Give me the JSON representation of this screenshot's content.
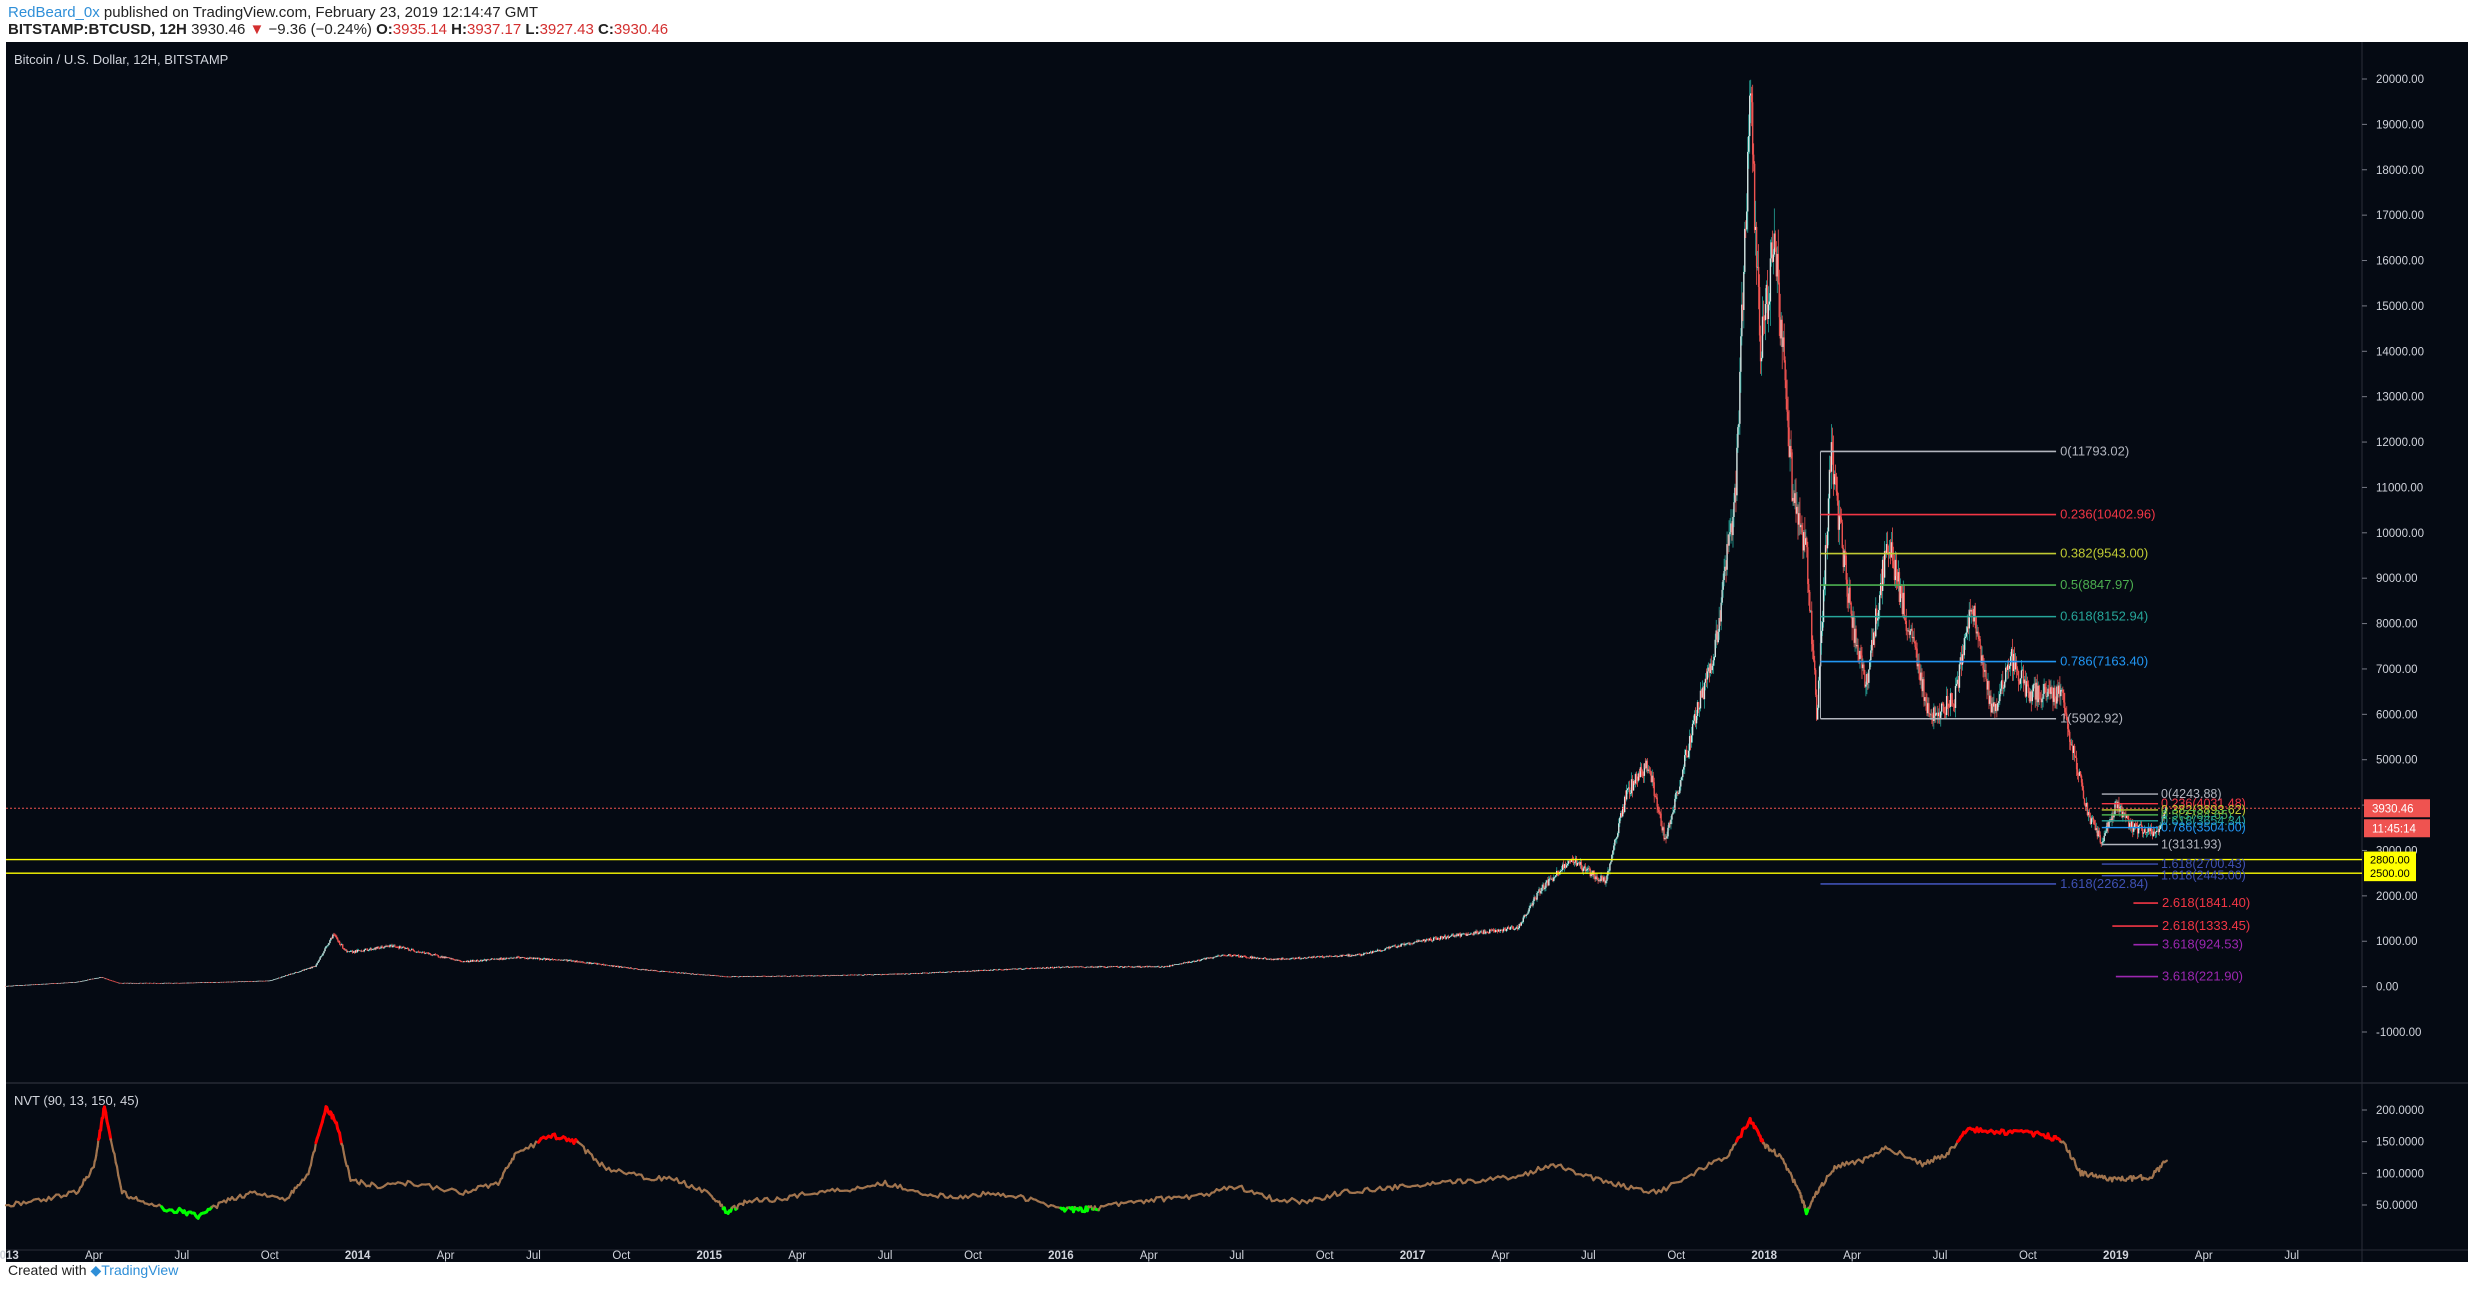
{
  "header": {
    "author": "RedBeard_0x",
    "published": " published on TradingView.com, February 23, 2019 12:14:47 GMT",
    "symbol": "BITSTAMP:BTCUSD, 12H",
    "last": "3930.46",
    "change": "−9.36 (−0.24%)",
    "o_label": "O:",
    "o_value": "3935.14",
    "h_label": "H:",
    "h_value": "3937.17",
    "l_label": "L:",
    "l_value": "3927.43",
    "c_label": "C:",
    "c_value": "3930.46",
    "down_arrow": "▼"
  },
  "footer": {
    "created_with": "Created with",
    "brand": "TradingView"
  },
  "colors": {
    "background": "#050a13",
    "up": "#26a69a",
    "down": "#ef5350",
    "price_line": "#ef5350",
    "support": "#ffff00",
    "nvt_line": "#a1744e",
    "nvt_high": "#ff0000",
    "nvt_low": "#00ff00"
  },
  "chart_data": [
    {
      "type": "candlestick",
      "title": "Bitcoin / U.S. Dollar, 12H, BITSTAMP",
      "ylim": [
        -1000,
        20500
      ],
      "y_ticks": [
        "20000.00",
        "19000.00",
        "18000.00",
        "17000.00",
        "16000.00",
        "15000.00",
        "14000.00",
        "13000.00",
        "12000.00",
        "11000.00",
        "10000.00",
        "9000.00",
        "8000.00",
        "7000.00",
        "6000.00",
        "5000.00",
        "4000.00",
        "3000.00",
        "2000.00",
        "1000.00",
        "0.00",
        "-1000.00"
      ],
      "x_ticks": [
        "2013",
        "Apr",
        "Jul",
        "Oct",
        "2014",
        "Apr",
        "Jul",
        "Oct",
        "2015",
        "Apr",
        "Jul",
        "Oct",
        "2016",
        "Apr",
        "Jul",
        "Oct",
        "2017",
        "Apr",
        "Jul",
        "Oct",
        "2018",
        "Apr",
        "Jul",
        "Oct",
        "2019",
        "Apr",
        "Jul"
      ],
      "price_path": [
        {
          "t": 2013.0,
          "v": 13
        },
        {
          "t": 2013.2,
          "v": 100
        },
        {
          "t": 2013.27,
          "v": 210
        },
        {
          "t": 2013.32,
          "v": 80
        },
        {
          "t": 2013.5,
          "v": 80
        },
        {
          "t": 2013.75,
          "v": 130
        },
        {
          "t": 2013.88,
          "v": 450
        },
        {
          "t": 2013.93,
          "v": 1150
        },
        {
          "t": 2013.97,
          "v": 750
        },
        {
          "t": 2014.1,
          "v": 900
        },
        {
          "t": 2014.3,
          "v": 550
        },
        {
          "t": 2014.45,
          "v": 640
        },
        {
          "t": 2014.6,
          "v": 580
        },
        {
          "t": 2014.8,
          "v": 380
        },
        {
          "t": 2015.05,
          "v": 220
        },
        {
          "t": 2015.3,
          "v": 240
        },
        {
          "t": 2015.55,
          "v": 280
        },
        {
          "t": 2015.85,
          "v": 380
        },
        {
          "t": 2016.0,
          "v": 430
        },
        {
          "t": 2016.3,
          "v": 440
        },
        {
          "t": 2016.47,
          "v": 700
        },
        {
          "t": 2016.6,
          "v": 600
        },
        {
          "t": 2016.85,
          "v": 700
        },
        {
          "t": 2017.0,
          "v": 970
        },
        {
          "t": 2017.1,
          "v": 1100
        },
        {
          "t": 2017.2,
          "v": 1200
        },
        {
          "t": 2017.3,
          "v": 1300
        },
        {
          "t": 2017.36,
          "v": 2100
        },
        {
          "t": 2017.45,
          "v": 2800
        },
        {
          "t": 2017.55,
          "v": 2300
        },
        {
          "t": 2017.61,
          "v": 4300
        },
        {
          "t": 2017.67,
          "v": 4900
        },
        {
          "t": 2017.72,
          "v": 3200
        },
        {
          "t": 2017.8,
          "v": 5800
        },
        {
          "t": 2017.86,
          "v": 7400
        },
        {
          "t": 2017.92,
          "v": 11000
        },
        {
          "t": 2017.96,
          "v": 19700
        },
        {
          "t": 2017.99,
          "v": 14000
        },
        {
          "t": 2018.03,
          "v": 16500
        },
        {
          "t": 2018.08,
          "v": 11000
        },
        {
          "t": 2018.12,
          "v": 9500
        },
        {
          "t": 2018.15,
          "v": 6000
        },
        {
          "t": 2018.19,
          "v": 11700
        },
        {
          "t": 2018.25,
          "v": 8000
        },
        {
          "t": 2018.29,
          "v": 6600
        },
        {
          "t": 2018.35,
          "v": 9900
        },
        {
          "t": 2018.42,
          "v": 7600
        },
        {
          "t": 2018.47,
          "v": 6000
        },
        {
          "t": 2018.54,
          "v": 6300
        },
        {
          "t": 2018.59,
          "v": 8400
        },
        {
          "t": 2018.65,
          "v": 6000
        },
        {
          "t": 2018.7,
          "v": 7300
        },
        {
          "t": 2018.75,
          "v": 6500
        },
        {
          "t": 2018.85,
          "v": 6400
        },
        {
          "t": 2018.87,
          "v": 5500
        },
        {
          "t": 2018.92,
          "v": 3800
        },
        {
          "t": 2018.96,
          "v": 3200
        },
        {
          "t": 2019.0,
          "v": 4000
        },
        {
          "t": 2019.05,
          "v": 3500
        },
        {
          "t": 2019.12,
          "v": 3400
        },
        {
          "t": 2019.145,
          "v": 3930
        }
      ],
      "last_price": "3930.46",
      "countdown": "11:45:14",
      "support_levels": [
        {
          "value": 2800,
          "label": "2800.00"
        },
        {
          "value": 2500,
          "label": "2500.00"
        }
      ],
      "fib_major": {
        "start": 2018.16,
        "end": 2018.83,
        "levels": [
          {
            "label": "0(11793.02)",
            "value": 11793.02,
            "color": "#b2b5be"
          },
          {
            "label": "0.236(10402.96)",
            "value": 10402.96,
            "color": "#f23645"
          },
          {
            "label": "0.382(9543.00)",
            "value": 9543.0,
            "color": "#c0ca33"
          },
          {
            "label": "0.5(8847.97)",
            "value": 8847.97,
            "color": "#4caf50"
          },
          {
            "label": "0.618(8152.94)",
            "value": 8152.94,
            "color": "#26a69a"
          },
          {
            "label": "0.786(7163.40)",
            "value": 7163.4,
            "color": "#2196f3"
          },
          {
            "label": "1(5902.92)",
            "value": 5902.92,
            "color": "#b2b5be"
          }
        ],
        "extensions": [
          {
            "label": "1.618(2262.84)",
            "value": 2262.84,
            "color": "#3f51b5",
            "x0": 2018.16,
            "x1": 2018.83
          },
          {
            "label": "2.618(1841.40)",
            "value": 1841.4,
            "color": "#f23645",
            "x0": 2019.05,
            "x1": 2019.12
          },
          {
            "label": "2.618(1333.45)",
            "value": 1333.45,
            "color": "#f23645",
            "x0": 2018.99,
            "x1": 2019.12
          },
          {
            "label": "3.618(924.53)",
            "value": 924.53,
            "color": "#9c27b0",
            "x0": 2019.05,
            "x1": 2019.12
          },
          {
            "label": "3.618(221.90)",
            "value": 221.9,
            "color": "#9c27b0",
            "x0": 2019.0,
            "x1": 2019.12
          }
        ]
      },
      "fib_minor": {
        "start": 2018.96,
        "end": 2019.12,
        "levels": [
          {
            "label": "0(4243.88)",
            "value": 4243.88,
            "color": "#b2b5be"
          },
          {
            "label": "0.236(4031.48)",
            "value": 4031.48,
            "color": "#f23645"
          },
          {
            "label": "0.382(3893.62)",
            "value": 3893.62,
            "color": "#c0ca33"
          },
          {
            "label": "0.5(3784.65)",
            "value": 3784.65,
            "color": "#4caf50"
          },
          {
            "label": "0.618(3654.34)",
            "value": 3654.34,
            "color": "#26a69a"
          },
          {
            "label": "0.786(3504.00)",
            "value": 3504.0,
            "color": "#2196f3"
          },
          {
            "label": "1(3131.93)",
            "value": 3131.93,
            "color": "#b2b5be"
          },
          {
            "label": "1.618(2700.43)",
            "value": 2700.43,
            "color": "#3f51b5"
          },
          {
            "label": "1.618(2445.00)",
            "value": 2445.0,
            "color": "#3f51b5"
          }
        ]
      }
    },
    {
      "type": "line",
      "title": "NVT (90, 13, 150, 45)",
      "ylim": [
        20,
        230
      ],
      "y_ticks": [
        "200.0000",
        "150.0000",
        "100.0000",
        "50.0000"
      ],
      "y_tick_values": [
        200,
        150,
        100,
        50
      ],
      "high_threshold": 150,
      "low_threshold": 45,
      "x": [
        2013.0,
        2013.1,
        2013.2,
        2013.25,
        2013.28,
        2013.33,
        2013.4,
        2013.5,
        2013.55,
        2013.62,
        2013.7,
        2013.8,
        2013.86,
        2013.91,
        2013.94,
        2013.98,
        2014.05,
        2014.15,
        2014.3,
        2014.4,
        2014.45,
        2014.55,
        2014.62,
        2014.7,
        2014.8,
        2014.9,
        2015.0,
        2015.05,
        2015.1,
        2015.2,
        2015.3,
        2015.4,
        2015.5,
        2015.6,
        2015.7,
        2015.8,
        2015.9,
        2016.0,
        2016.05,
        2016.1,
        2016.2,
        2016.3,
        2016.4,
        2016.5,
        2016.6,
        2016.7,
        2016.8,
        2016.9,
        2017.0,
        2017.1,
        2017.2,
        2017.3,
        2017.4,
        2017.5,
        2017.6,
        2017.7,
        2017.8,
        2017.9,
        2017.96,
        2018.0,
        2018.05,
        2018.1,
        2018.12,
        2018.15,
        2018.2,
        2018.28,
        2018.35,
        2018.45,
        2018.52,
        2018.58,
        2018.65,
        2018.72,
        2018.8,
        2018.85,
        2018.9,
        2018.95,
        2019.0,
        2019.05,
        2019.1,
        2019.145
      ],
      "values": [
        50,
        58,
        70,
        110,
        205,
        70,
        50,
        40,
        32,
        55,
        70,
        60,
        100,
        205,
        180,
        90,
        80,
        85,
        70,
        85,
        130,
        160,
        150,
        110,
        95,
        90,
        70,
        38,
        55,
        60,
        70,
        75,
        85,
        70,
        60,
        70,
        60,
        45,
        42,
        45,
        55,
        60,
        65,
        80,
        60,
        55,
        70,
        75,
        80,
        85,
        90,
        95,
        115,
        95,
        80,
        70,
        100,
        130,
        185,
        145,
        125,
        70,
        40,
        70,
        110,
        120,
        140,
        115,
        130,
        170,
        165,
        165,
        160,
        150,
        100,
        95,
        90,
        92,
        95,
        120
      ]
    }
  ]
}
